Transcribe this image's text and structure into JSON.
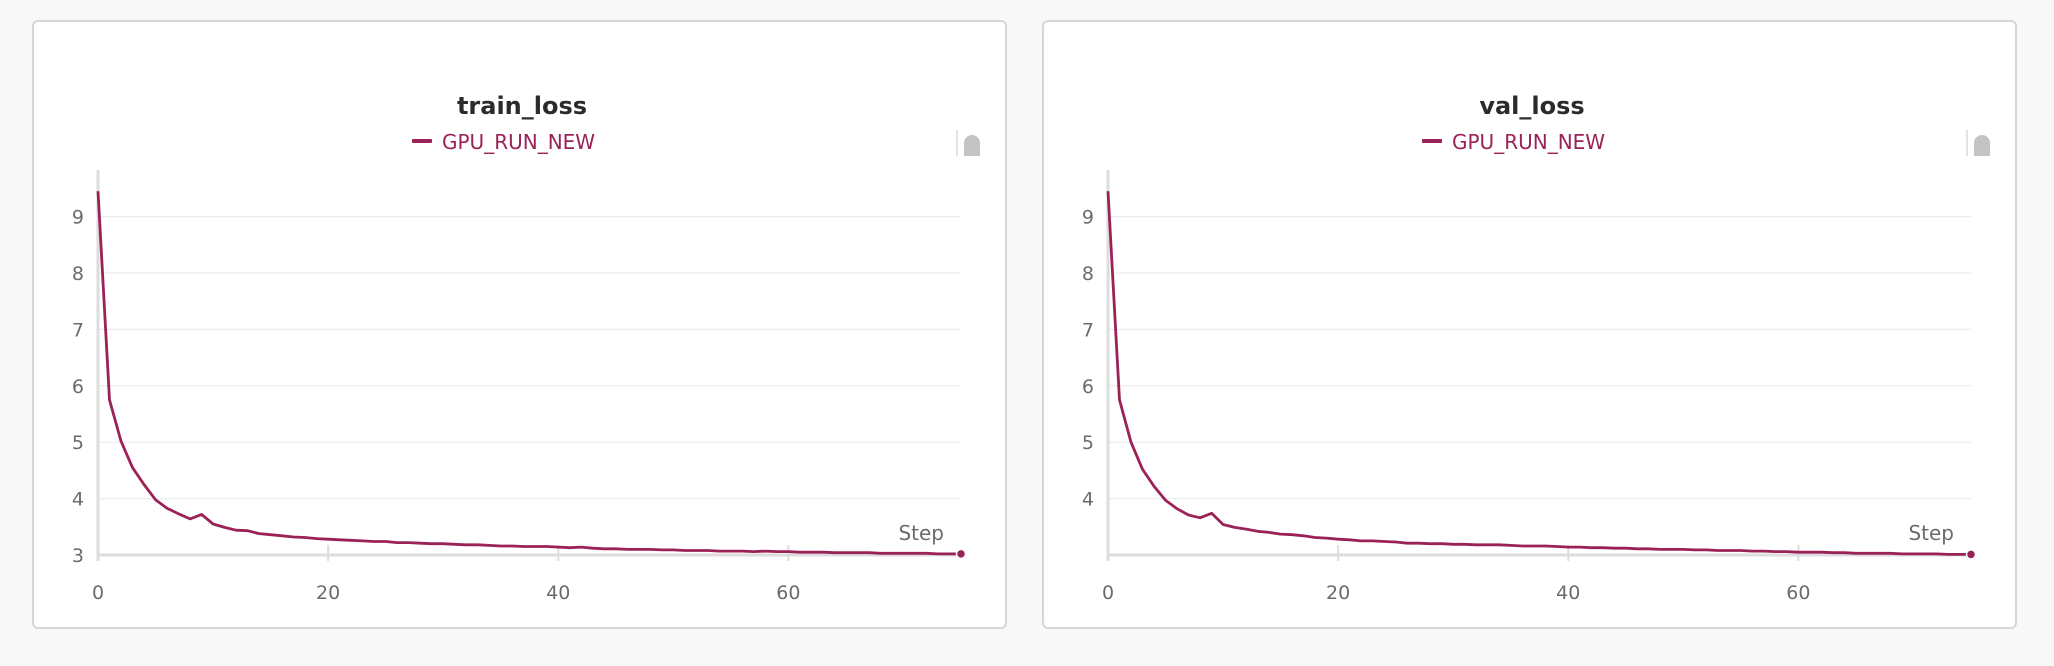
{
  "chart_data": [
    {
      "type": "line",
      "title": "train_loss",
      "xlabel": "Step",
      "ylabel": "",
      "xlim": [
        0,
        75
      ],
      "ylim": [
        3,
        9.4
      ],
      "xticks": [
        0,
        20,
        40,
        60
      ],
      "yticks": [
        3,
        4,
        5,
        6,
        7,
        8,
        9
      ],
      "grid": true,
      "legend_position": "top-center",
      "series": [
        {
          "name": "GPU_RUN_NEW",
          "color": "#9b2257",
          "x": [
            0,
            1,
            2,
            3,
            4,
            5,
            6,
            7,
            8,
            9,
            10,
            11,
            12,
            13,
            14,
            15,
            16,
            17,
            18,
            19,
            20,
            21,
            22,
            23,
            24,
            25,
            26,
            27,
            28,
            29,
            30,
            31,
            32,
            33,
            34,
            35,
            36,
            37,
            38,
            39,
            40,
            41,
            42,
            43,
            44,
            45,
            46,
            47,
            48,
            49,
            50,
            51,
            52,
            53,
            54,
            55,
            56,
            57,
            58,
            59,
            60,
            61,
            62,
            63,
            64,
            65,
            66,
            67,
            68,
            69,
            70,
            71,
            72,
            73,
            74,
            75
          ],
          "y": [
            9.45,
            5.75,
            5.02,
            4.55,
            4.25,
            3.98,
            3.83,
            3.73,
            3.64,
            3.72,
            3.55,
            3.49,
            3.44,
            3.43,
            3.38,
            3.36,
            3.34,
            3.32,
            3.31,
            3.29,
            3.28,
            3.27,
            3.26,
            3.25,
            3.24,
            3.24,
            3.22,
            3.22,
            3.21,
            3.2,
            3.2,
            3.19,
            3.18,
            3.18,
            3.17,
            3.16,
            3.16,
            3.15,
            3.15,
            3.15,
            3.14,
            3.13,
            3.14,
            3.12,
            3.11,
            3.11,
            3.1,
            3.1,
            3.1,
            3.09,
            3.09,
            3.08,
            3.08,
            3.08,
            3.07,
            3.07,
            3.07,
            3.06,
            3.07,
            3.06,
            3.06,
            3.05,
            3.05,
            3.05,
            3.04,
            3.04,
            3.04,
            3.04,
            3.03,
            3.03,
            3.03,
            3.03,
            3.03,
            3.02,
            3.02,
            3.02
          ]
        }
      ]
    },
    {
      "type": "line",
      "title": "val_loss",
      "xlabel": "Step",
      "ylabel": "",
      "xlim": [
        0,
        75
      ],
      "ylim": [
        3,
        9.4
      ],
      "xticks": [
        0,
        20,
        40,
        60
      ],
      "yticks": [
        4,
        5,
        6,
        7,
        8,
        9
      ],
      "grid": true,
      "legend_position": "top-center",
      "series": [
        {
          "name": "GPU_RUN_NEW",
          "color": "#9b2257",
          "x": [
            0,
            1,
            2,
            3,
            4,
            5,
            6,
            7,
            8,
            9,
            10,
            11,
            12,
            13,
            14,
            15,
            16,
            17,
            18,
            19,
            20,
            21,
            22,
            23,
            24,
            25,
            26,
            27,
            28,
            29,
            30,
            31,
            32,
            33,
            34,
            35,
            36,
            37,
            38,
            39,
            40,
            41,
            42,
            43,
            44,
            45,
            46,
            47,
            48,
            49,
            50,
            51,
            52,
            53,
            54,
            55,
            56,
            57,
            58,
            59,
            60,
            61,
            62,
            63,
            64,
            65,
            66,
            67,
            68,
            69,
            70,
            71,
            72,
            73,
            74,
            75
          ],
          "y": [
            9.45,
            5.75,
            5.0,
            4.52,
            4.22,
            3.97,
            3.82,
            3.71,
            3.66,
            3.74,
            3.54,
            3.49,
            3.46,
            3.42,
            3.4,
            3.37,
            3.36,
            3.34,
            3.31,
            3.3,
            3.28,
            3.27,
            3.25,
            3.25,
            3.24,
            3.23,
            3.21,
            3.21,
            3.2,
            3.2,
            3.19,
            3.19,
            3.18,
            3.18,
            3.18,
            3.17,
            3.16,
            3.16,
            3.16,
            3.15,
            3.14,
            3.14,
            3.13,
            3.13,
            3.12,
            3.12,
            3.11,
            3.11,
            3.1,
            3.1,
            3.1,
            3.09,
            3.09,
            3.08,
            3.08,
            3.08,
            3.07,
            3.07,
            3.06,
            3.06,
            3.05,
            3.05,
            3.05,
            3.04,
            3.04,
            3.03,
            3.03,
            3.03,
            3.03,
            3.02,
            3.02,
            3.02,
            3.02,
            3.01,
            3.01,
            3.01
          ]
        }
      ]
    }
  ]
}
